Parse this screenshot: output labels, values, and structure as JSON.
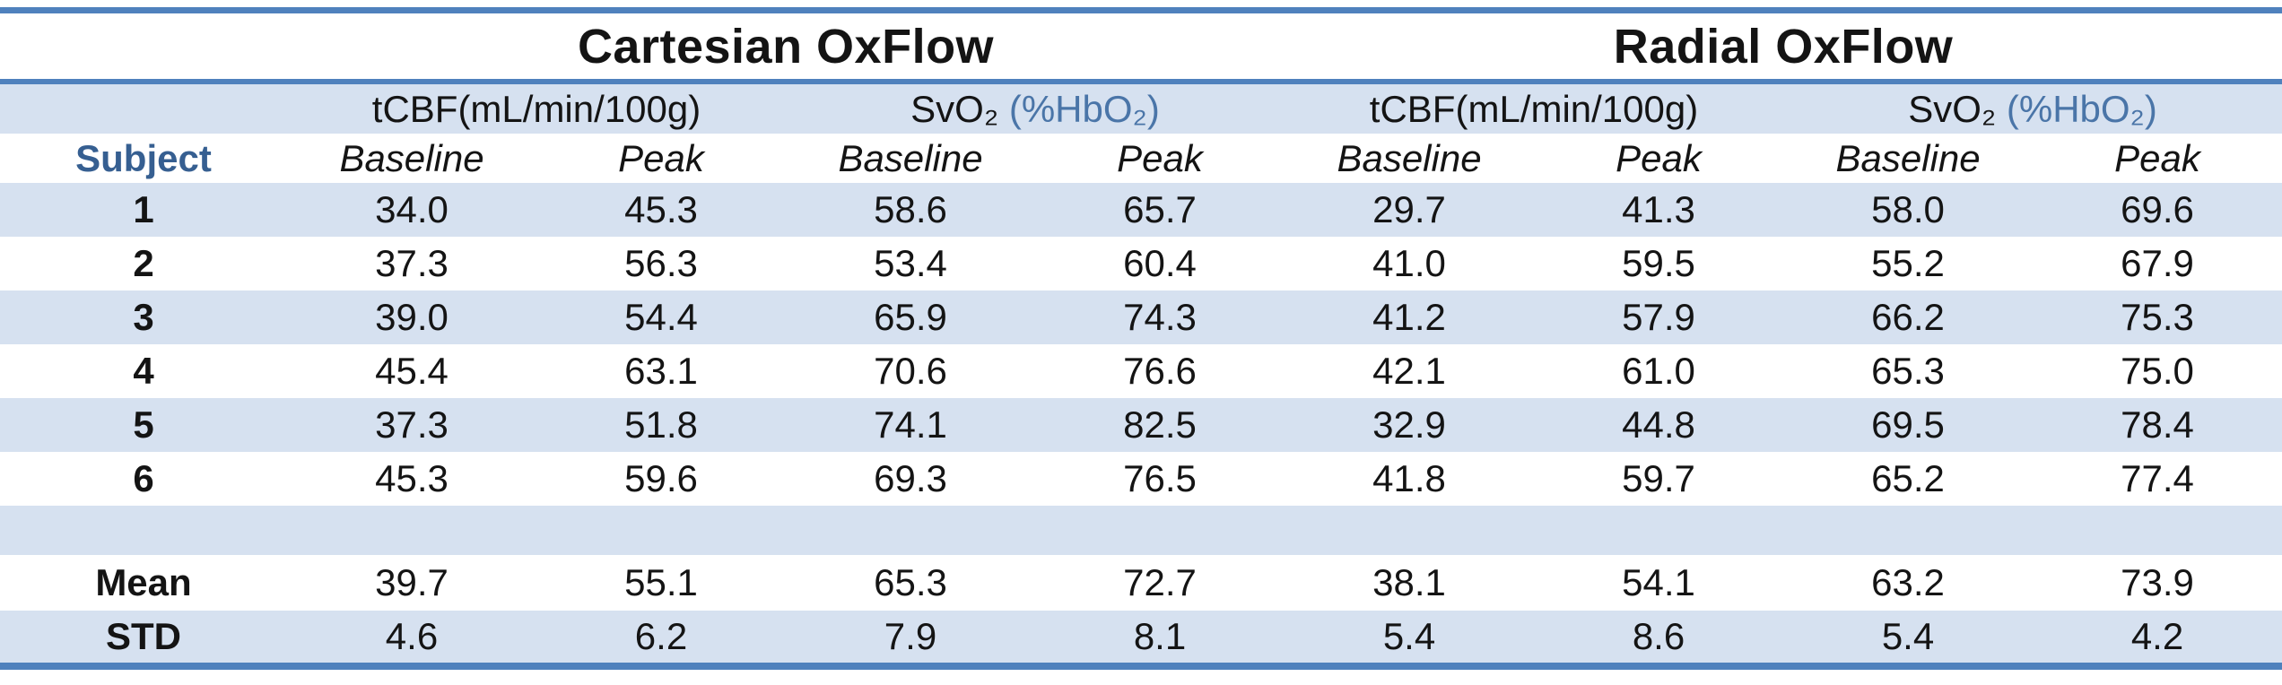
{
  "table": {
    "section_titles": {
      "cartesian": "Cartesian OxFlow",
      "radial": "Radial OxFlow"
    },
    "measure_headers": {
      "tcbf": "tCBF(mL/min/100g)",
      "svo2": "SvO₂",
      "svo2_unit": "(%HbO₂)"
    },
    "subject_header": "Subject",
    "condition_headers": {
      "baseline": "Baseline",
      "peak": "Peak"
    },
    "column_structure": [
      "Cartesian tCBF Baseline",
      "Cartesian tCBF Peak",
      "Cartesian SvO2 Baseline",
      "Cartesian SvO2 Peak",
      "Radial tCBF Baseline",
      "Radial tCBF Peak",
      "Radial SvO2 Baseline",
      "Radial SvO2 Peak"
    ],
    "rows": [
      {
        "label": "1",
        "values": [
          "34.0",
          "45.3",
          "58.6",
          "65.7",
          "29.7",
          "41.3",
          "58.0",
          "69.6"
        ]
      },
      {
        "label": "2",
        "values": [
          "37.3",
          "56.3",
          "53.4",
          "60.4",
          "41.0",
          "59.5",
          "55.2",
          "67.9"
        ]
      },
      {
        "label": "3",
        "values": [
          "39.0",
          "54.4",
          "65.9",
          "74.3",
          "41.2",
          "57.9",
          "66.2",
          "75.3"
        ]
      },
      {
        "label": "4",
        "values": [
          "45.4",
          "63.1",
          "70.6",
          "76.6",
          "42.1",
          "61.0",
          "65.3",
          "75.0"
        ]
      },
      {
        "label": "5",
        "values": [
          "37.3",
          "51.8",
          "74.1",
          "82.5",
          "32.9",
          "44.8",
          "69.5",
          "78.4"
        ]
      },
      {
        "label": "6",
        "values": [
          "45.3",
          "59.6",
          "69.3",
          "76.5",
          "41.8",
          "59.7",
          "65.2",
          "77.4"
        ]
      }
    ],
    "summary": [
      {
        "label": "Mean",
        "values": [
          "39.7",
          "55.1",
          "65.3",
          "72.7",
          "38.1",
          "54.1",
          "63.2",
          "73.9"
        ]
      },
      {
        "label": "STD",
        "values": [
          "4.6",
          "6.2",
          "7.9",
          "8.1",
          "5.4",
          "8.6",
          "5.4",
          "4.2"
        ]
      }
    ],
    "colors": {
      "accent_line": "#4f81bd",
      "band_fill": "#d6e1f0",
      "subject_header_text": "#365f91",
      "svo2_unit_text": "#4a75a8",
      "body_text": "#141414"
    }
  }
}
